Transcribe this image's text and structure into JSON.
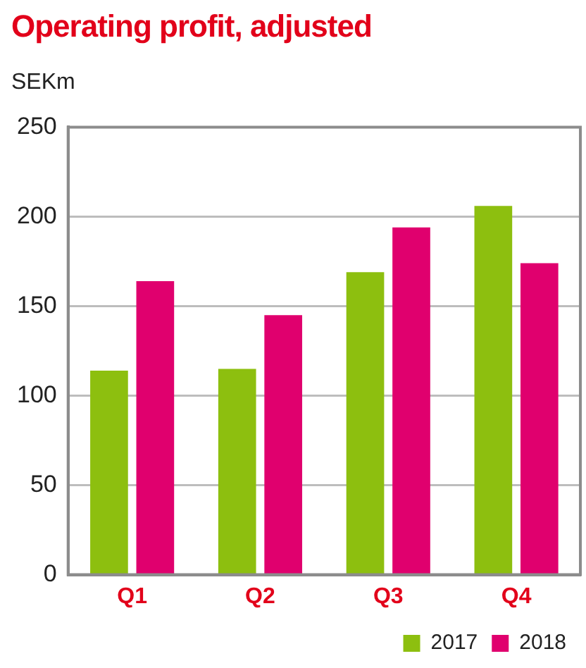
{
  "chart_data": {
    "type": "bar",
    "title": "Operating profit, adjusted",
    "ylabel": "SEKm",
    "categories": [
      "Q1",
      "Q2",
      "Q3",
      "Q4"
    ],
    "series": [
      {
        "name": "2017",
        "color": "#8dbf0f",
        "values": [
          114,
          115,
          169,
          206
        ]
      },
      {
        "name": "2018",
        "color": "#e0006e",
        "values": [
          164,
          145,
          194,
          174
        ]
      }
    ],
    "ylim": [
      0,
      250
    ],
    "yticks": [
      0,
      50,
      100,
      150,
      200,
      250
    ],
    "grid": "y",
    "legend": "bottom right"
  }
}
